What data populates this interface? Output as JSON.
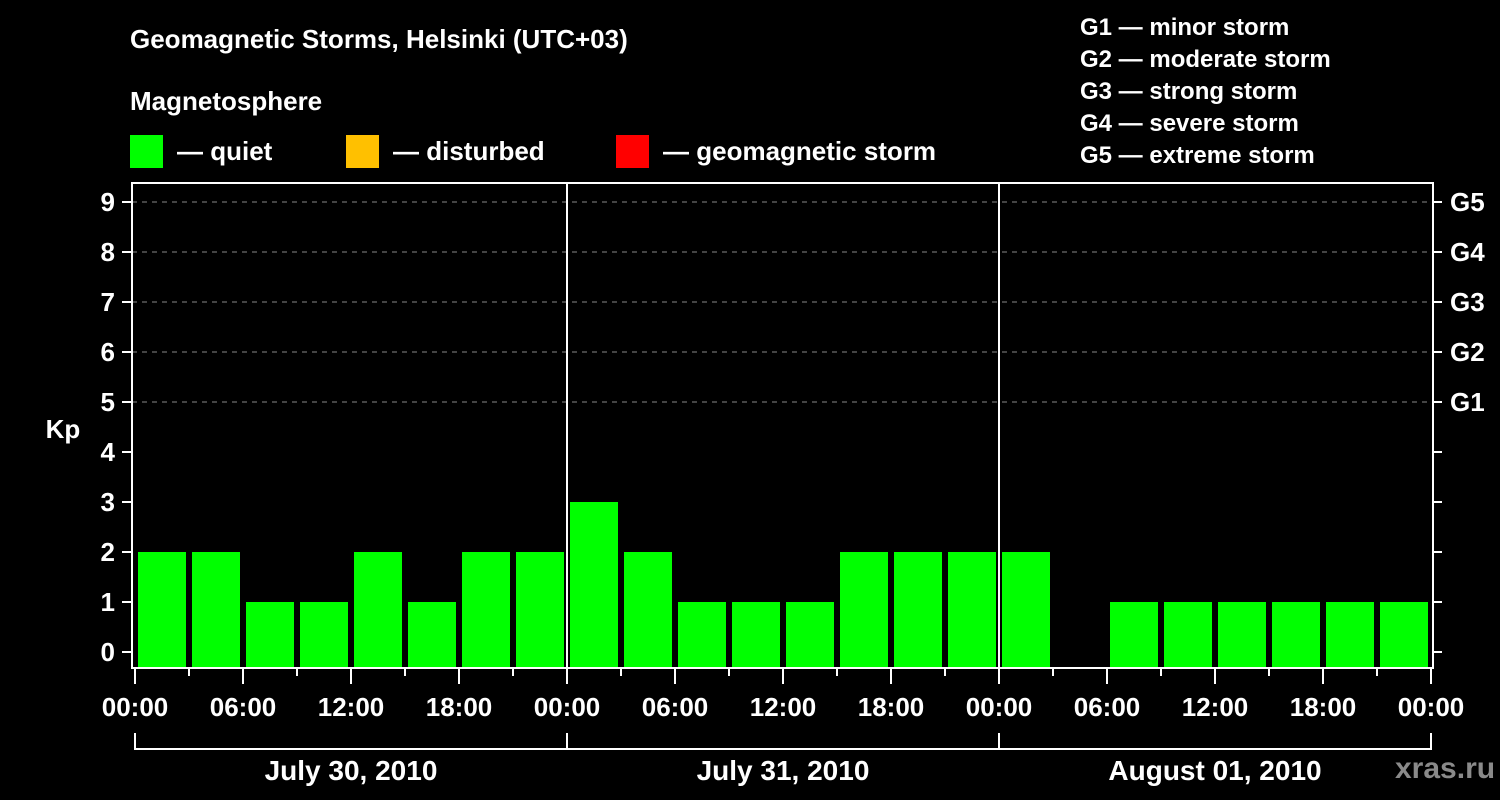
{
  "header": {
    "title": "Geomagnetic Storms, Helsinki (UTC+03)",
    "subtitle": "Magnetosphere"
  },
  "legend": {
    "items": [
      {
        "label": "— quiet",
        "color": "#00ff00"
      },
      {
        "label": "— disturbed",
        "color": "#ffc000"
      },
      {
        "label": "— geomagnetic storm",
        "color": "#ff0000"
      }
    ]
  },
  "storm_scale": {
    "items": [
      "G1 — minor storm",
      "G2 — moderate storm",
      "G3 — strong storm",
      "G4 — severe storm",
      "G5 — extreme storm"
    ]
  },
  "watermark": "xras.ru",
  "chart_data": {
    "type": "bar",
    "title": "Geomagnetic Storms, Helsinki (UTC+03)",
    "subtitle": "Magnetosphere",
    "ylabel": "Kp",
    "ylim": [
      0,
      9
    ],
    "yticks": [
      0,
      1,
      2,
      3,
      4,
      5,
      6,
      7,
      8,
      9
    ],
    "right_axis_labels": {
      "5": "G1",
      "6": "G2",
      "7": "G3",
      "8": "G4",
      "9": "G5"
    },
    "grid": "dashed horizontal lines at Kp 5-9",
    "xtick_labels": [
      "00:00",
      "06:00",
      "12:00",
      "18:00",
      "00:00",
      "06:00",
      "12:00",
      "18:00",
      "00:00",
      "06:00",
      "12:00",
      "18:00",
      "00:00"
    ],
    "days": [
      "July 30, 2010",
      "July 31, 2010",
      "August 01, 2010"
    ],
    "interval_hours": 3,
    "categories": [
      "Jul 30 00-03",
      "Jul 30 03-06",
      "Jul 30 06-09",
      "Jul 30 09-12",
      "Jul 30 12-15",
      "Jul 30 15-18",
      "Jul 30 18-21",
      "Jul 30 21-24",
      "Jul 31 00-03",
      "Jul 31 03-06",
      "Jul 31 06-09",
      "Jul 31 09-12",
      "Jul 31 12-15",
      "Jul 31 15-18",
      "Jul 31 18-21",
      "Jul 31 21-24",
      "Aug 01 00-03",
      "Aug 01 03-06",
      "Aug 01 06-09",
      "Aug 01 09-12",
      "Aug 01 12-15",
      "Aug 01 15-18",
      "Aug 01 18-21",
      "Aug 01 21-24"
    ],
    "values": [
      2,
      2,
      1,
      1,
      2,
      1,
      2,
      2,
      3,
      2,
      1,
      1,
      1,
      2,
      2,
      2,
      2,
      0,
      1,
      1,
      1,
      1,
      1,
      1
    ],
    "status": [
      "quiet",
      "quiet",
      "quiet",
      "quiet",
      "quiet",
      "quiet",
      "quiet",
      "quiet",
      "quiet",
      "quiet",
      "quiet",
      "quiet",
      "quiet",
      "quiet",
      "quiet",
      "quiet",
      "quiet",
      "quiet",
      "quiet",
      "quiet",
      "quiet",
      "quiet",
      "quiet",
      "quiet"
    ],
    "colors": {
      "quiet": "#00ff00",
      "disturbed": "#ffc000",
      "storm": "#ff0000"
    },
    "legend_position": "top"
  }
}
